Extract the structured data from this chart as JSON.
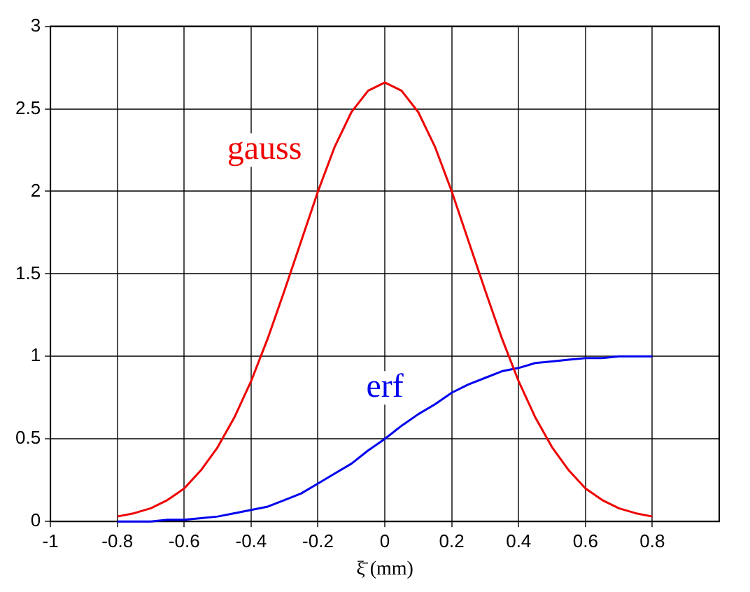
{
  "chart_data": {
    "type": "line",
    "xlabel": "ξ̄ (mm)",
    "xlim": [
      -1,
      1
    ],
    "xticks": [
      -1,
      -0.8,
      -0.6,
      -0.4,
      -0.2,
      0,
      0.2,
      0.4,
      0.6,
      0.8
    ],
    "ylim": [
      0,
      3
    ],
    "yticks": [
      0,
      0.5,
      1,
      1.5,
      2,
      2.5,
      3
    ],
    "grid": true,
    "legend": false,
    "marker": "none",
    "line_style": "solid",
    "x": [
      -0.8,
      -0.75,
      -0.7,
      -0.65,
      -0.6,
      -0.55,
      -0.5,
      -0.45,
      -0.4,
      -0.35,
      -0.3,
      -0.25,
      -0.2,
      -0.15,
      -0.1,
      -0.05,
      0,
      0.05,
      0.1,
      0.15,
      0.2,
      0.25,
      0.3,
      0.35,
      0.4,
      0.45,
      0.5,
      0.55,
      0.6,
      0.65,
      0.7,
      0.75,
      0.8
    ],
    "series": [
      {
        "color": "#ee0000",
        "values": [
          0.03,
          0.05,
          0.08,
          0.13,
          0.2,
          0.31,
          0.45,
          0.63,
          0.85,
          1.11,
          1.4,
          1.7,
          2.0,
          2.27,
          2.48,
          2.61,
          2.66,
          2.61,
          2.48,
          2.27,
          2.0,
          1.7,
          1.4,
          1.11,
          0.85,
          0.63,
          0.45,
          0.31,
          0.2,
          0.13,
          0.08,
          0.05,
          0.03
        ]
      },
      {
        "color": "#0000ee",
        "values": [
          0.0,
          0.0,
          0.0,
          0.01,
          0.01,
          0.02,
          0.03,
          0.05,
          0.07,
          0.09,
          0.13,
          0.17,
          0.23,
          0.29,
          0.35,
          0.43,
          0.5,
          0.58,
          0.65,
          0.71,
          0.78,
          0.83,
          0.87,
          0.91,
          0.93,
          0.96,
          0.97,
          0.98,
          0.99,
          0.99,
          1.0,
          1.0,
          1.0
        ]
      }
    ],
    "annotations": [
      "gauss",
      "erf"
    ]
  }
}
